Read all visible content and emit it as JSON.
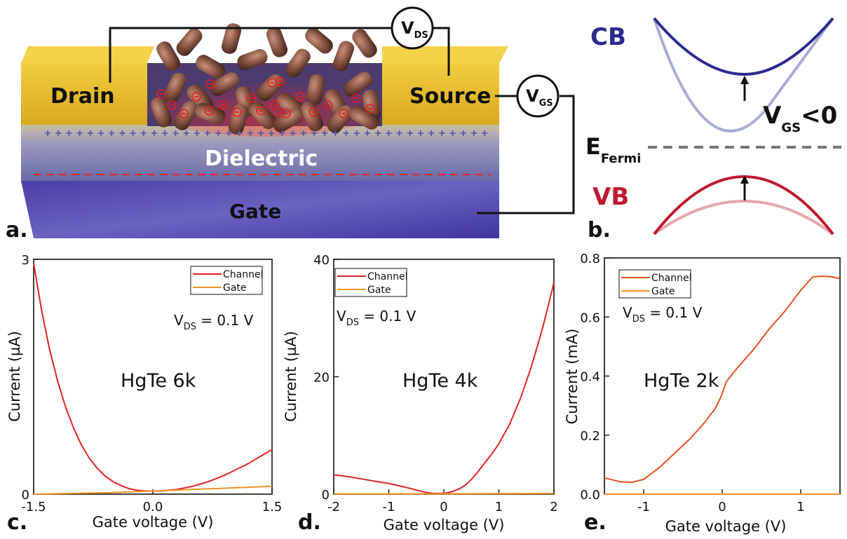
{
  "device": {
    "drain_label": "Drain",
    "source_label": "Source",
    "dielectric_label": "Dielectric",
    "gate_label": "Gate",
    "vds_main": "V",
    "vds_sub": "DS",
    "vgs_main": "V",
    "vgs_sub": "GS",
    "panel_label": "a.",
    "colors": {
      "gold": "#e8bd2a",
      "gate": "#4f45b0",
      "dielectric": "#7c7aa5",
      "charge": "#d32020"
    }
  },
  "bands": {
    "cb_label": "CB",
    "vb_label": "VB",
    "fermi_main": "E",
    "fermi_sub": "Fermi",
    "cond_main": "V",
    "cond_sub": "GS",
    "cond_rest": "<0",
    "panel_label": "b.",
    "colors": {
      "cb": "#2a2b8f",
      "cb_light": "#a9acd8",
      "vb": "#c0182f",
      "vb_light": "#e8a6ae",
      "fermi": "#777777"
    }
  },
  "chart_data": [
    {
      "type": "line",
      "panel_label": "c.",
      "annotation": "HgTe 6k",
      "vds_main": "V",
      "vds_sub": "DS",
      "vds_rest": " = 0.1 V",
      "xlabel": "Gate voltage (V)",
      "ylabel": "Current (µA)",
      "xlim": [
        -1.5,
        1.5
      ],
      "ylim": [
        0,
        3
      ],
      "xticks": [
        "-1.5",
        "0.0",
        "1.5"
      ],
      "yticks": [
        "0",
        "3"
      ],
      "legend_position": "top-right",
      "series": [
        {
          "name": "Channel",
          "color": "#e32222",
          "x": [
            -1.5,
            -1.4,
            -1.3,
            -1.2,
            -1.1,
            -1.0,
            -0.9,
            -0.8,
            -0.7,
            -0.6,
            -0.5,
            -0.4,
            -0.3,
            -0.2,
            -0.1,
            0.0,
            0.1,
            0.2,
            0.3,
            0.4,
            0.5,
            0.6,
            0.7,
            0.8,
            0.9,
            1.0,
            1.1,
            1.2,
            1.3,
            1.4,
            1.5
          ],
          "y": [
            2.95,
            2.35,
            1.85,
            1.45,
            1.12,
            0.85,
            0.63,
            0.46,
            0.33,
            0.23,
            0.16,
            0.11,
            0.07,
            0.05,
            0.04,
            0.04,
            0.04,
            0.05,
            0.06,
            0.08,
            0.1,
            0.13,
            0.16,
            0.2,
            0.24,
            0.29,
            0.34,
            0.39,
            0.45,
            0.51,
            0.57
          ]
        },
        {
          "name": "Gate",
          "color": "#f39221",
          "x": [
            -1.5,
            -1.0,
            -0.5,
            0.0,
            0.5,
            1.0,
            1.5
          ],
          "y": [
            0.0,
            0.01,
            0.02,
            0.04,
            0.06,
            0.08,
            0.1
          ]
        }
      ]
    },
    {
      "type": "line",
      "panel_label": "d.",
      "annotation": "HgTe 4k",
      "vds_main": "V",
      "vds_sub": "DS",
      "vds_rest": " = 0.1 V",
      "xlabel": "Gate voltage (V)",
      "ylabel": "Current (µA)",
      "xlim": [
        -2,
        2
      ],
      "ylim": [
        0,
        40
      ],
      "xticks": [
        "-2",
        "-1",
        "0",
        "1",
        "2"
      ],
      "yticks": [
        "0",
        "20",
        "40"
      ],
      "legend_position": "top-left",
      "series": [
        {
          "name": "Channel",
          "color": "#e32222",
          "x": [
            -2.0,
            -1.75,
            -1.5,
            -1.25,
            -1.0,
            -0.75,
            -0.5,
            -0.4,
            -0.3,
            -0.2,
            -0.1,
            0.0,
            0.1,
            0.2,
            0.3,
            0.4,
            0.5,
            0.6,
            0.7,
            0.8,
            0.9,
            1.0,
            1.2,
            1.4,
            1.6,
            1.8,
            2.0
          ],
          "y": [
            3.3,
            3.0,
            2.6,
            2.2,
            1.8,
            1.3,
            0.7,
            0.45,
            0.25,
            0.15,
            0.12,
            0.15,
            0.3,
            0.6,
            1.0,
            1.6,
            2.5,
            3.6,
            4.8,
            6.0,
            7.2,
            8.6,
            12.0,
            16.5,
            22.0,
            28.5,
            36.0
          ]
        },
        {
          "name": "Gate",
          "color": "#f39221",
          "x": [
            -2.0,
            -1.0,
            0.0,
            1.0,
            2.0
          ],
          "y": [
            0.05,
            0.05,
            0.06,
            0.08,
            0.12
          ]
        }
      ]
    },
    {
      "type": "line",
      "panel_label": "e.",
      "annotation": "HgTe 2k",
      "vds_main": "V",
      "vds_sub": "DS",
      "vds_rest": " = 0.1 V",
      "xlabel": "Gate voltage (V)",
      "ylabel": "Current (mA)",
      "xlim": [
        -1.5,
        1.5
      ],
      "ylim": [
        0,
        0.8
      ],
      "xticks": [
        "-1",
        "0",
        "1"
      ],
      "yticks": [
        "0.0",
        "0.2",
        "0.4",
        "0.6",
        "0.8"
      ],
      "legend_position": "top-left",
      "series": [
        {
          "name": "Channel",
          "color": "#e8501f",
          "x": [
            -1.5,
            -1.3,
            -1.15,
            -1.0,
            -0.8,
            -0.6,
            -0.4,
            -0.2,
            -0.15,
            -0.1,
            -0.05,
            0.0,
            0.05,
            0.2,
            0.4,
            0.6,
            0.8,
            1.0,
            1.1,
            1.15,
            1.2,
            1.3,
            1.4,
            1.5
          ],
          "y": [
            0.055,
            0.042,
            0.04,
            0.05,
            0.09,
            0.14,
            0.19,
            0.25,
            0.27,
            0.285,
            0.31,
            0.34,
            0.38,
            0.43,
            0.49,
            0.56,
            0.62,
            0.69,
            0.72,
            0.735,
            0.737,
            0.738,
            0.736,
            0.73
          ]
        },
        {
          "name": "Gate",
          "color": "#f39221",
          "x": [
            -1.5,
            0.0,
            1.5
          ],
          "y": [
            0.0,
            0.0,
            0.0
          ]
        }
      ]
    }
  ]
}
